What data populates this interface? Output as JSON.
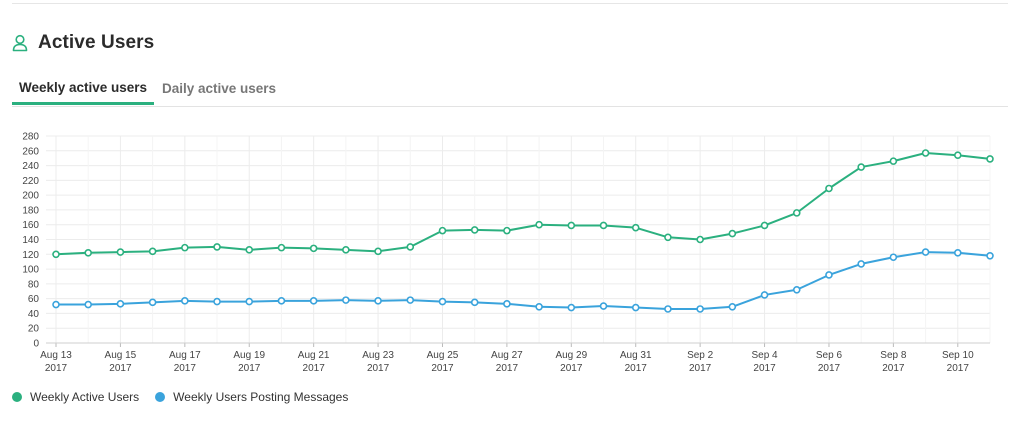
{
  "section": {
    "title": "Active Users",
    "icon": "user-icon"
  },
  "tabs": [
    {
      "label": "Weekly active users",
      "active": true
    },
    {
      "label": "Daily active users",
      "active": false
    }
  ],
  "colors": {
    "green": "#2bb07f",
    "blue": "#3aa3dc",
    "grid": "#ececec"
  },
  "chart_data": {
    "type": "line",
    "grid": true,
    "legend_position": "bottom-left",
    "ylim": [
      0,
      280
    ],
    "y_ticks": [
      0,
      20,
      40,
      60,
      80,
      100,
      120,
      140,
      160,
      180,
      200,
      220,
      240,
      260,
      280
    ],
    "x_ticks": [
      [
        "Aug 13",
        "2017"
      ],
      [
        "Aug 15",
        "2017"
      ],
      [
        "Aug 17",
        "2017"
      ],
      [
        "Aug 19",
        "2017"
      ],
      [
        "Aug 21",
        "2017"
      ],
      [
        "Aug 23",
        "2017"
      ],
      [
        "Aug 25",
        "2017"
      ],
      [
        "Aug 27",
        "2017"
      ],
      [
        "Aug 29",
        "2017"
      ],
      [
        "Aug 31",
        "2017"
      ],
      [
        "Sep 2",
        "2017"
      ],
      [
        "Sep 4",
        "2017"
      ],
      [
        "Sep 6",
        "2017"
      ],
      [
        "Sep 8",
        "2017"
      ],
      [
        "Sep 10",
        "2017"
      ]
    ],
    "x": [
      "2017-08-13",
      "2017-08-14",
      "2017-08-15",
      "2017-08-16",
      "2017-08-17",
      "2017-08-18",
      "2017-08-19",
      "2017-08-20",
      "2017-08-21",
      "2017-08-22",
      "2017-08-23",
      "2017-08-24",
      "2017-08-25",
      "2017-08-26",
      "2017-08-27",
      "2017-08-28",
      "2017-08-29",
      "2017-08-30",
      "2017-08-31",
      "2017-09-01",
      "2017-09-02",
      "2017-09-03",
      "2017-09-04",
      "2017-09-05",
      "2017-09-06",
      "2017-09-07",
      "2017-09-08",
      "2017-09-09",
      "2017-09-10",
      "2017-09-11"
    ],
    "series": [
      {
        "name": "Weekly Active Users",
        "color": "#2bb07f",
        "values": [
          120,
          122,
          123,
          124,
          129,
          130,
          126,
          129,
          128,
          126,
          124,
          130,
          152,
          153,
          152,
          160,
          159,
          159,
          156,
          143,
          140,
          148,
          159,
          176,
          209,
          238,
          246,
          257,
          254,
          249
        ]
      },
      {
        "name": "Weekly Users Posting Messages",
        "color": "#3aa3dc",
        "values": [
          52,
          52,
          53,
          55,
          57,
          56,
          56,
          57,
          57,
          58,
          57,
          58,
          56,
          55,
          53,
          49,
          48,
          50,
          48,
          46,
          46,
          49,
          65,
          72,
          92,
          107,
          116,
          123,
          122,
          118
        ]
      }
    ]
  }
}
